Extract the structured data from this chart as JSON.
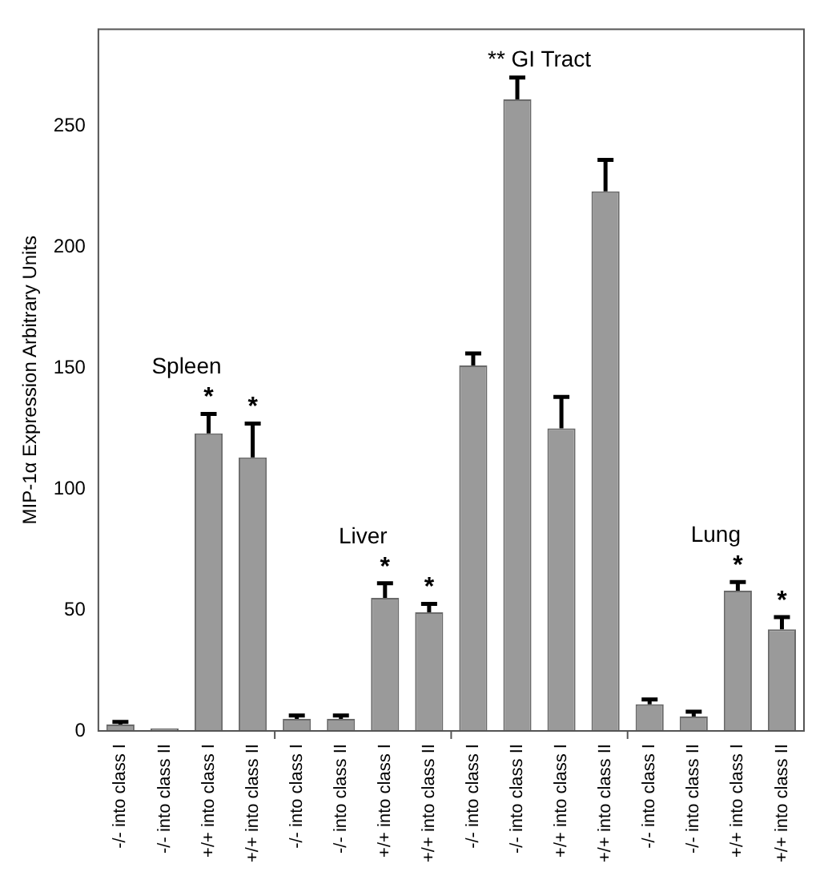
{
  "chart_data": {
    "type": "bar",
    "ylabel": "MIP-1α Expression Arbitrary Units",
    "categories": [
      "-/- into class I",
      "-/- into class II",
      "+/+ into class I",
      "+/+ into class II",
      "-/- into class I",
      "-/- into class II",
      "+/+ into class I",
      "+/+ into class II",
      "-/- into class I",
      "-/- into class II",
      "+/+ into class I",
      "+/+ into class II",
      "-/- into class I",
      "-/- into class II",
      "+/+ into class I",
      "+/+ into class II"
    ],
    "values": [
      2.7,
      1,
      123,
      113,
      5,
      5,
      55,
      49,
      151,
      261,
      125,
      223,
      11,
      6,
      58,
      42
    ],
    "errors": [
      [
        2.7,
        3.7
      ],
      null,
      [
        123,
        131
      ],
      [
        113,
        127
      ],
      [
        5,
        6.4
      ],
      [
        5,
        6.4
      ],
      [
        55,
        61
      ],
      [
        49,
        52.5
      ],
      [
        151,
        156
      ],
      [
        261,
        270
      ],
      [
        125,
        138
      ],
      [
        223,
        236
      ],
      [
        11,
        13
      ],
      [
        6,
        8
      ],
      [
        58,
        61.5
      ],
      [
        42,
        47
      ]
    ],
    "value_labels": [
      null,
      null,
      "*",
      "*",
      null,
      null,
      "*",
      "*",
      null,
      null,
      null,
      null,
      null,
      null,
      "*",
      "*"
    ],
    "color": "#9a9a9a",
    "annotations": [
      "Spleen",
      "Liver",
      "** GI Tract",
      "Lung"
    ],
    "ylim": [
      0,
      290
    ],
    "yticks": [
      0,
      50,
      100,
      150,
      200,
      250
    ],
    "grid": false,
    "legend": false
  }
}
